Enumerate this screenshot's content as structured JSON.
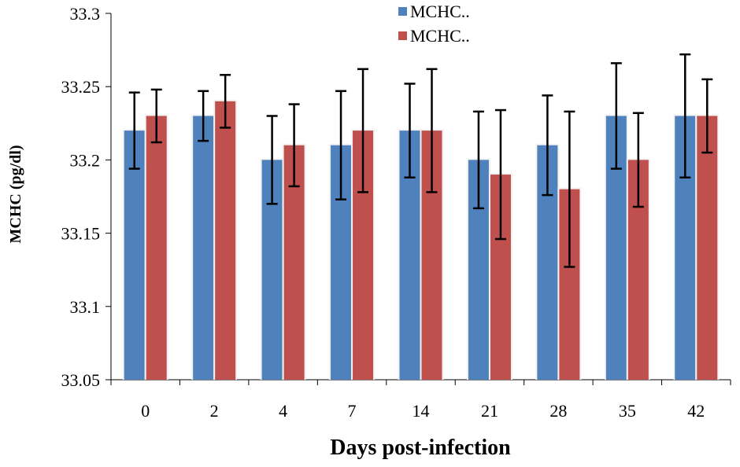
{
  "chart_data": {
    "type": "bar",
    "title": "",
    "xlabel": "Days post-infection",
    "ylabel": "MCHC (pg/dl)",
    "ylim": [
      33.05,
      33.3
    ],
    "yticks": [
      "33.05",
      "33.1",
      "33.15",
      "33.2",
      "33.25",
      "33.3"
    ],
    "categories": [
      "0",
      "2",
      "4",
      "7",
      "14",
      "21",
      "28",
      "35",
      "42"
    ],
    "grid": false,
    "legend_position": "top-center",
    "series": [
      {
        "name": "MCHC..",
        "color": "#4F81BD",
        "values": [
          33.22,
          33.23,
          33.2,
          33.21,
          33.22,
          33.2,
          33.21,
          33.23,
          33.23
        ],
        "errors": [
          0.026,
          0.017,
          0.03,
          0.037,
          0.032,
          0.033,
          0.034,
          0.036,
          0.042
        ]
      },
      {
        "name": "MCHC..",
        "color": "#C0504D",
        "values": [
          33.23,
          33.24,
          33.21,
          33.22,
          33.22,
          33.19,
          33.18,
          33.2,
          33.23
        ],
        "errors": [
          0.018,
          0.018,
          0.028,
          0.042,
          0.042,
          0.044,
          0.053,
          0.032,
          0.025
        ]
      }
    ]
  }
}
